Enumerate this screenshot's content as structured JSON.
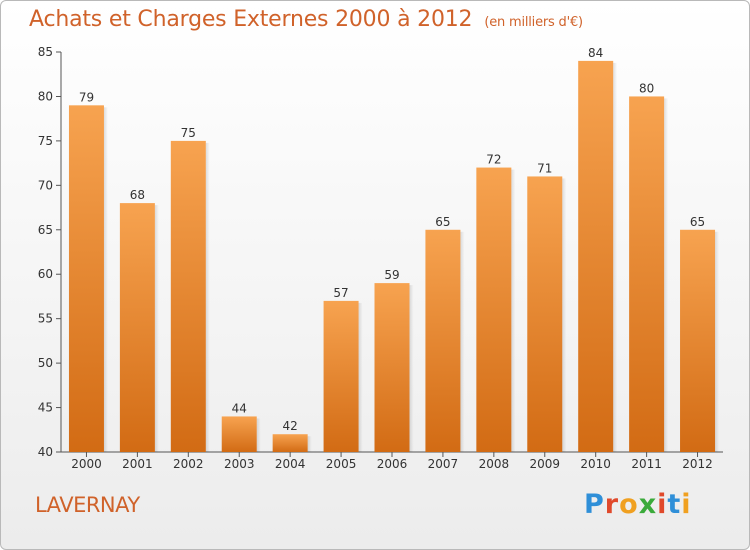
{
  "header": {
    "title": "Achats et Charges Externes 2000 à 2012",
    "unit": "(en milliers d'€)"
  },
  "footer": {
    "commune": "LAVERNAY",
    "logo": "Proxiti"
  },
  "colors": {
    "bar_top": "#f7a350",
    "bar_bottom": "#d26b14",
    "title": "#d0622a",
    "logo": [
      "#2f8fd8",
      "#e0492b",
      "#f0a020",
      "#3aaa3a",
      "#e0492b",
      "#2f8fd8",
      "#f0a020"
    ]
  },
  "chart_data": {
    "type": "bar",
    "title": "Achats et Charges Externes 2000 à 2012",
    "categories": [
      "2000",
      "2001",
      "2002",
      "2003",
      "2004",
      "2005",
      "2006",
      "2007",
      "2008",
      "2009",
      "2010",
      "2011",
      "2012"
    ],
    "values": [
      79,
      68,
      75,
      44,
      42,
      57,
      59,
      65,
      72,
      71,
      84,
      80,
      65
    ],
    "ylim": [
      40,
      85
    ],
    "yticks": [
      40,
      45,
      50,
      55,
      60,
      65,
      70,
      75,
      80,
      85
    ],
    "grid": false,
    "data_labels": true
  }
}
